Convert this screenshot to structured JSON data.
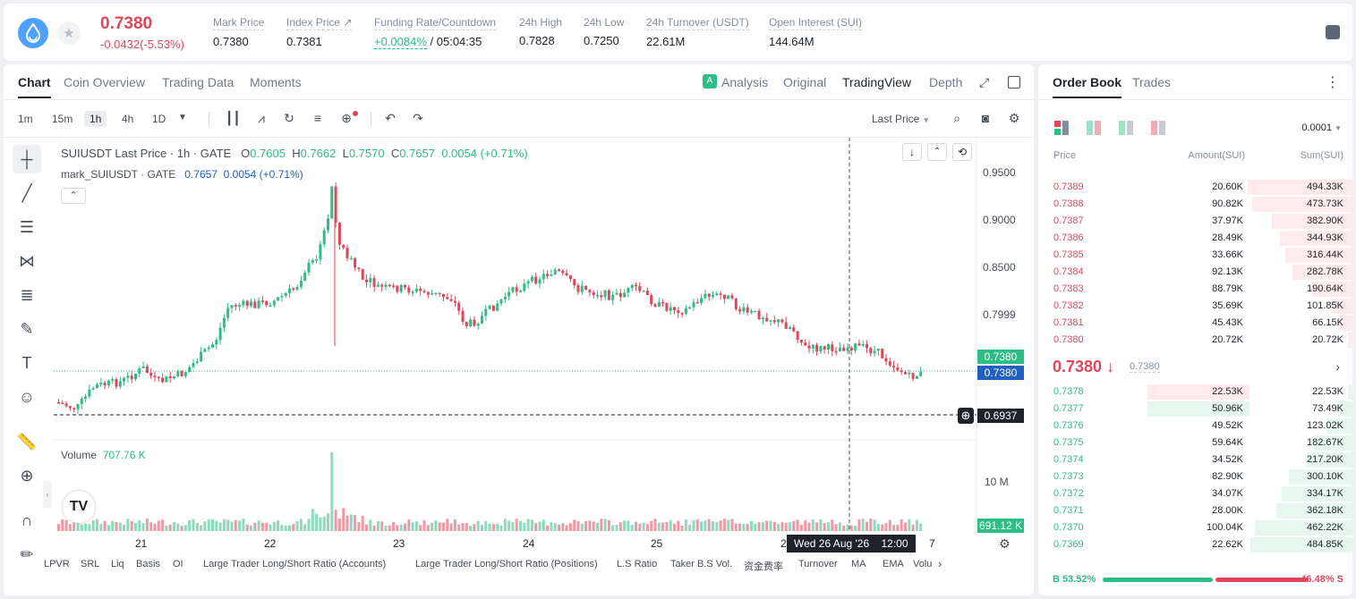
{
  "header": {
    "last_price": "0.7380",
    "change": "-0.0432(-5.53%)",
    "stats": [
      {
        "label": "Mark Price",
        "value": "0.7380"
      },
      {
        "label": "Index Price ↗",
        "value": "0.7381"
      },
      {
        "label": "Funding Rate/Countdown",
        "value_green": "+0.0084%",
        "value": " / 05:04:35"
      },
      {
        "label": "24h High",
        "value": "0.7828"
      },
      {
        "label": "24h Low",
        "value": "0.7250"
      },
      {
        "label": "24h Turnover (USDT)",
        "value": "22.61M"
      },
      {
        "label": "Open Interest (SUI)",
        "value": "144.64M"
      }
    ]
  },
  "chart_tabs": [
    "Chart",
    "Coin Overview",
    "Trading Data",
    "Moments"
  ],
  "view_tabs": [
    "Analysis",
    "Original",
    "TradingView",
    "Depth"
  ],
  "timeframes": [
    "1m",
    "15m",
    "1h",
    "4h",
    "1D"
  ],
  "price_source": "Last Price",
  "legend": {
    "symbol": "SUIUSDT Last Price · 1h · GATE",
    "o_lbl": "O",
    "o": "0.7605",
    "h_lbl": "H",
    "h": "0.7662",
    "l_lbl": "L",
    "l": "0.7570",
    "c_lbl": "C",
    "c": "0.7657",
    "chg": "0.0054 (+0.71%)",
    "mark": "mark_SUIUSDT · GATE",
    "mark_val": "0.7657",
    "mark_chg": "0.0054 (+0.71%)"
  },
  "price_axis": [
    "0.9500",
    "0.9000",
    "0.8500",
    "0.7999"
  ],
  "price_tags": {
    "last": "0.7380",
    "mark": "0.7380",
    "cursor": "0.6937"
  },
  "volume": {
    "label": "Volume",
    "value": "707.76 K",
    "axis": "10 M",
    "tag": "691.12 K"
  },
  "x_axis": [
    "21",
    "22",
    "23",
    "24",
    "25",
    "2",
    "7"
  ],
  "crosshair_time": "Wed 26 Aug '26    12:00",
  "bottom_indicators": [
    "LPVR",
    "SRL",
    "Liq",
    "Basis",
    "OI",
    "Large Trader Long/Short Ratio (Accounts)",
    "Large Trader Long/Short Ratio (Positions)",
    "L.S Ratio",
    "Taker B.S Vol.",
    "资金费率",
    "Turnover",
    "MA",
    "EMA",
    "Volu"
  ],
  "order_book": {
    "tabs": [
      "Order Book",
      "Trades"
    ],
    "precision": "0.0001",
    "headers": [
      "Price",
      "Amount(SUI)",
      "Sum(SUI)"
    ],
    "asks": [
      {
        "p": "0.7389",
        "a": "20.60K",
        "s": "494.33K"
      },
      {
        "p": "0.7388",
        "a": "90.82K",
        "s": "473.73K"
      },
      {
        "p": "0.7387",
        "a": "37.97K",
        "s": "382.90K"
      },
      {
        "p": "0.7386",
        "a": "28.49K",
        "s": "344.93K"
      },
      {
        "p": "0.7385",
        "a": "33.66K",
        "s": "316.44K"
      },
      {
        "p": "0.7384",
        "a": "92.13K",
        "s": "282.78K"
      },
      {
        "p": "0.7383",
        "a": "88.79K",
        "s": "190.64K"
      },
      {
        "p": "0.7382",
        "a": "35.69K",
        "s": "101.85K"
      },
      {
        "p": "0.7381",
        "a": "45.43K",
        "s": "66.15K"
      },
      {
        "p": "0.7380",
        "a": "20.72K",
        "s": "20.72K"
      }
    ],
    "mid_price": "0.7380 ↓",
    "mid_mark": "0.7380",
    "bids": [
      {
        "p": "0.7378",
        "a": "22.53K",
        "s": "22.53K"
      },
      {
        "p": "0.7377",
        "a": "50.96K",
        "s": "73.49K"
      },
      {
        "p": "0.7376",
        "a": "49.52K",
        "s": "123.02K"
      },
      {
        "p": "0.7375",
        "a": "59.64K",
        "s": "182.67K"
      },
      {
        "p": "0.7374",
        "a": "34.52K",
        "s": "217.20K"
      },
      {
        "p": "0.7373",
        "a": "82.90K",
        "s": "300.10K"
      },
      {
        "p": "0.7372",
        "a": "34.07K",
        "s": "334.17K"
      },
      {
        "p": "0.7371",
        "a": "28.00K",
        "s": "362.18K"
      },
      {
        "p": "0.7370",
        "a": "100.04K",
        "s": "462.22K"
      },
      {
        "p": "0.7369",
        "a": "22.62K",
        "s": "484.85K"
      }
    ],
    "buy_ratio": "B 53.52%",
    "sell_ratio": "46.48% S",
    "buy_fraction": 0.5352
  },
  "colors": {
    "up": "#2ebd85",
    "down": "#e0475a",
    "accent": "#1e2329"
  }
}
